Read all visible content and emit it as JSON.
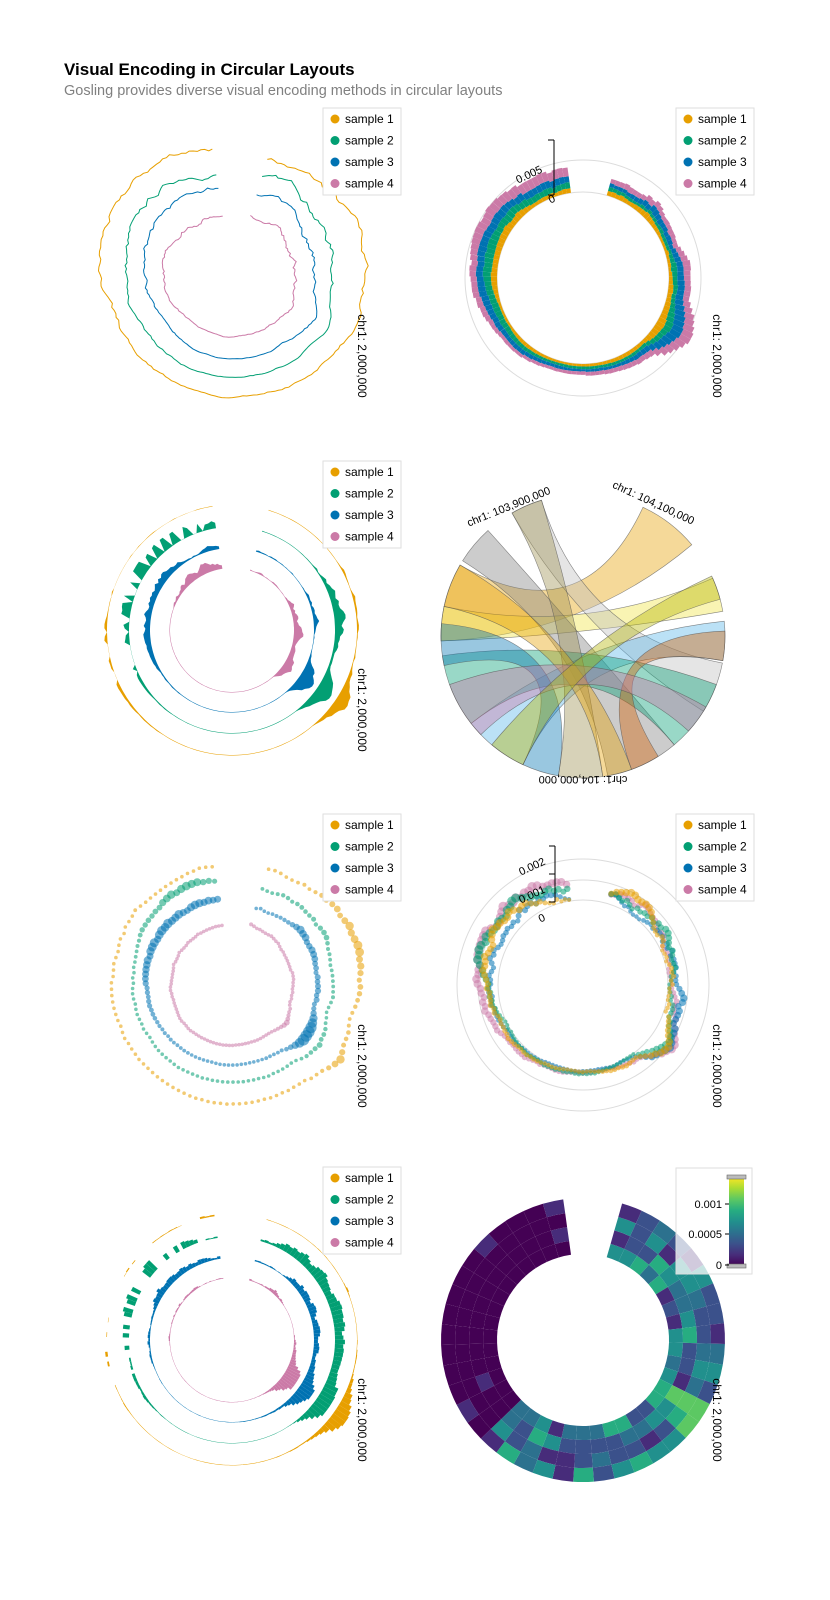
{
  "header": {
    "title": "Visual Encoding in Circular Layouts",
    "subtitle": "Gosling provides diverse visual encoding methods in circular layouts"
  },
  "colors": {
    "sample_1": "#E79F00",
    "sample_2": "#029F73",
    "sample_3": "#0072B2",
    "sample_4": "#CB7AA7",
    "axis": "#000000",
    "grid": "#dcdcdc"
  },
  "chart_data": [
    {
      "id": "circular-line",
      "type": "line",
      "layout": "circular",
      "legend": [
        "sample 1",
        "sample 2",
        "sample 3",
        "sample 4"
      ],
      "legend_position": "top-right",
      "position_label": "chr1: 2,000,000"
    },
    {
      "id": "circular-stacked-bar",
      "type": "bar",
      "stacked": true,
      "layout": "circular",
      "legend": [
        "sample 1",
        "sample 2",
        "sample 3",
        "sample 4"
      ],
      "legend_position": "top-right",
      "y_ticks": [
        "0.005",
        "0"
      ],
      "position_label": "chr1: 2,000,000"
    },
    {
      "id": "circular-area",
      "type": "area",
      "layout": "circular",
      "legend": [
        "sample 1",
        "sample 2",
        "sample 3",
        "sample 4"
      ],
      "legend_position": "top-right",
      "position_label": "chr1: 2,000,000"
    },
    {
      "id": "circular-link",
      "type": "link",
      "layout": "circular",
      "labels": [
        "chr1: 103,900,000",
        "chr1: 104,100,000",
        "chr1: 104,000,000"
      ]
    },
    {
      "id": "circular-point",
      "type": "scatter",
      "layout": "circular",
      "legend": [
        "sample 1",
        "sample 2",
        "sample 3",
        "sample 4"
      ],
      "legend_position": "top-right",
      "y_ticks": [
        "0.002",
        "0.001",
        "0"
      ],
      "position_label": "chr1: 2,000,000"
    },
    {
      "id": "circular-bar-rows",
      "type": "bar",
      "layout": "circular",
      "legend": [
        "sample 1",
        "sample 2",
        "sample 3",
        "sample 4"
      ],
      "legend_position": "top-right",
      "position_label": "chr1: 2,000,000"
    },
    {
      "id": "circular-heatmap",
      "type": "heatmap",
      "layout": "circular",
      "colorbar_ticks": [
        "0.001",
        "0.0005",
        "0"
      ],
      "colormap": "viridis",
      "position_label": "chr1: 2,000,000"
    }
  ]
}
